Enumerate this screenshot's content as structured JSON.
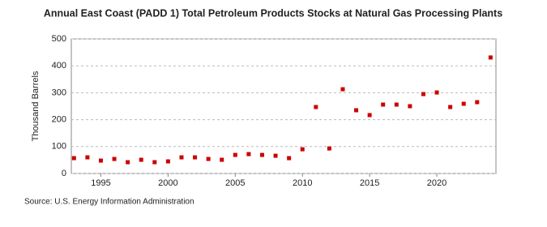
{
  "chart_data": {
    "type": "scatter",
    "title": "Annual East Coast (PADD 1) Total Petroleum Products Stocks at Natural Gas Processing Plants",
    "y_label": "Thousand Barrels",
    "source": "Source: U.S. Energy Information Administration",
    "x": [
      1993,
      1994,
      1995,
      1996,
      1997,
      1998,
      1999,
      2000,
      2001,
      2002,
      2003,
      2004,
      2005,
      2006,
      2007,
      2008,
      2009,
      2010,
      2011,
      2012,
      2013,
      2014,
      2015,
      2016,
      2017,
      2018,
      2019,
      2020,
      2021,
      2022,
      2023,
      2024
    ],
    "values": [
      57,
      60,
      48,
      54,
      42,
      51,
      42,
      45,
      60,
      60,
      54,
      51,
      69,
      72,
      69,
      66,
      57,
      90,
      247,
      93,
      313,
      235,
      217,
      256,
      256,
      250,
      295,
      301,
      247,
      259,
      265,
      431
    ],
    "color": "#cc0000",
    "xlim": [
      1992.8,
      2024.4
    ],
    "xticks": [
      1995,
      2000,
      2005,
      2010,
      2015,
      2020
    ],
    "ylim": [
      0,
      500
    ],
    "yticks": [
      0,
      100,
      200,
      300,
      400,
      500
    ],
    "grid": true
  }
}
